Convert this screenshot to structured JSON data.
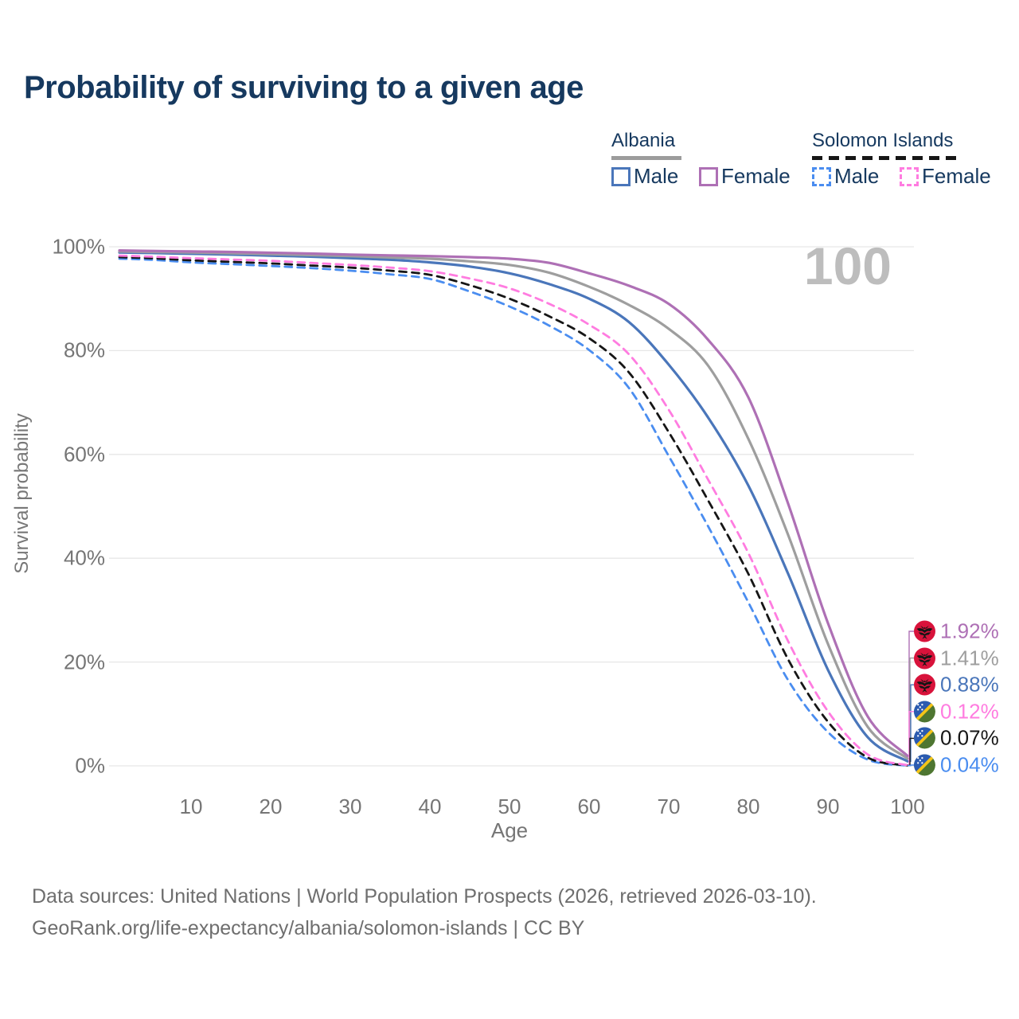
{
  "title": "Probability of surviving to a given age",
  "watermark": "100",
  "colors": {
    "title_text": "#16395f",
    "axis_text": "#757575",
    "gridline": "#e7e7e7",
    "watermark": "#bdbdbd"
  },
  "legend": {
    "groups": [
      {
        "label": "Albania",
        "underline_style": "solid",
        "underline_color": "#9c9c9c",
        "items": [
          {
            "label": "Male",
            "color": "#4a76ba",
            "dashed": false
          },
          {
            "label": "Female",
            "color": "#ae70b5",
            "dashed": false
          }
        ]
      },
      {
        "label": "Solomon Islands",
        "underline_style": "dashed",
        "underline_color": "#161616",
        "items": [
          {
            "label": "Male",
            "color": "#4a8df0",
            "dashed": true
          },
          {
            "label": "Female",
            "color": "#ff7ce0",
            "dashed": true
          }
        ]
      }
    ]
  },
  "y_axis": {
    "label": "Survival probability",
    "ticks": [
      {
        "label": "100%",
        "value": 100
      },
      {
        "label": "80%",
        "value": 80
      },
      {
        "label": "60%",
        "value": 60
      },
      {
        "label": "40%",
        "value": 40
      },
      {
        "label": "20%",
        "value": 20
      },
      {
        "label": "0%",
        "value": 0
      }
    ]
  },
  "x_axis": {
    "label": "Age",
    "ticks": [
      {
        "label": "10",
        "value": 10
      },
      {
        "label": "20",
        "value": 20
      },
      {
        "label": "30",
        "value": 30
      },
      {
        "label": "40",
        "value": 40
      },
      {
        "label": "50",
        "value": 50
      },
      {
        "label": "60",
        "value": 60
      },
      {
        "label": "70",
        "value": 70
      },
      {
        "label": "80",
        "value": 80
      },
      {
        "label": "90",
        "value": 90
      },
      {
        "label": "100",
        "value": 100
      }
    ]
  },
  "footer": {
    "line1": "Data sources: United Nations | World Population Prospects (2026, retrieved 2026-03-10).",
    "line2": "GeoRank.org/life-expectancy/albania/solomon-islands | CC BY"
  },
  "chart_data": {
    "type": "line",
    "title": "Probability of surviving to a given age",
    "xlabel": "Age",
    "ylabel": "Survival probability",
    "xlim": [
      0,
      100
    ],
    "ylim": [
      0,
      100
    ],
    "grid": true,
    "legend_position": "top-right",
    "x": [
      1,
      5,
      10,
      15,
      20,
      25,
      30,
      35,
      40,
      45,
      50,
      55,
      60,
      65,
      70,
      75,
      80,
      85,
      90,
      95,
      100
    ],
    "series": [
      {
        "name": "Albania Female",
        "country": "Albania",
        "sex": "Female",
        "color": "#ae70b5",
        "dashed": false,
        "flag": "albania",
        "end_label": "1.92%",
        "values": [
          99.3,
          99.2,
          99.1,
          99.0,
          98.85,
          98.7,
          98.5,
          98.35,
          98.2,
          98.0,
          97.7,
          96.9,
          94.9,
          92.5,
          89.0,
          82.0,
          71.0,
          50.5,
          27.5,
          9.5,
          1.92
        ]
      },
      {
        "name": "Albania Both sexes",
        "country": "Albania",
        "sex": "Both",
        "color": "#9e9e9e",
        "dashed": false,
        "flag": "albania",
        "end_label": "1.41%",
        "values": [
          99.1,
          99.0,
          98.9,
          98.75,
          98.6,
          98.4,
          98.2,
          97.95,
          97.7,
          97.2,
          96.5,
          95.0,
          92.3,
          88.8,
          84.2,
          77.0,
          63.0,
          44.5,
          23.5,
          7.5,
          1.41
        ]
      },
      {
        "name": "Albania Male",
        "country": "Albania",
        "sex": "Male",
        "color": "#4a76ba",
        "dashed": false,
        "flag": "albania",
        "end_label": "0.88%",
        "values": [
          98.9,
          98.8,
          98.65,
          98.5,
          98.3,
          98.1,
          97.8,
          97.5,
          97.0,
          96.2,
          94.9,
          92.8,
          90.0,
          85.5,
          77.3,
          67.0,
          54.0,
          37.0,
          18.5,
          5.5,
          0.88
        ]
      },
      {
        "name": "Solomon Islands Female",
        "country": "Solomon Islands",
        "sex": "Female",
        "color": "#ff7ce0",
        "dashed": true,
        "flag": "solomon-islands",
        "end_label": "0.12%",
        "values": [
          98.3,
          98.1,
          97.8,
          97.55,
          97.3,
          96.9,
          96.5,
          96.0,
          95.3,
          93.9,
          92.0,
          89.0,
          85.0,
          79.3,
          68.6,
          55.0,
          41.0,
          24.0,
          10.5,
          2.2,
          0.12
        ]
      },
      {
        "name": "Solomon Islands Both sexes",
        "country": "Solomon Islands",
        "sex": "Both",
        "color": "#161616",
        "dashed": true,
        "flag": "solomon-islands",
        "end_label": "0.07%",
        "values": [
          98.0,
          97.8,
          97.4,
          97.1,
          96.8,
          96.4,
          96.0,
          95.4,
          94.6,
          92.6,
          90.0,
          86.6,
          82.4,
          75.8,
          64.3,
          51.0,
          37.0,
          20.5,
          8.5,
          1.6,
          0.07
        ]
      },
      {
        "name": "Solomon Islands Male",
        "country": "Solomon Islands",
        "sex": "Male",
        "color": "#4a8df0",
        "dashed": true,
        "flag": "solomon-islands",
        "end_label": "0.04%",
        "values": [
          97.7,
          97.5,
          97.0,
          96.65,
          96.3,
          95.9,
          95.4,
          94.7,
          93.8,
          91.4,
          88.5,
          84.8,
          80.1,
          72.8,
          59.7,
          46.0,
          31.5,
          16.5,
          6.5,
          1.2,
          0.04
        ]
      }
    ],
    "flag_colors": {
      "albania_red": "#d8133b",
      "albania_eagle": "#151515",
      "solomon_blue": "#2b5bb0",
      "solomon_green": "#4e7631",
      "solomon_yellow": "#f5c518",
      "solomon_stars": "#ffffff"
    }
  }
}
